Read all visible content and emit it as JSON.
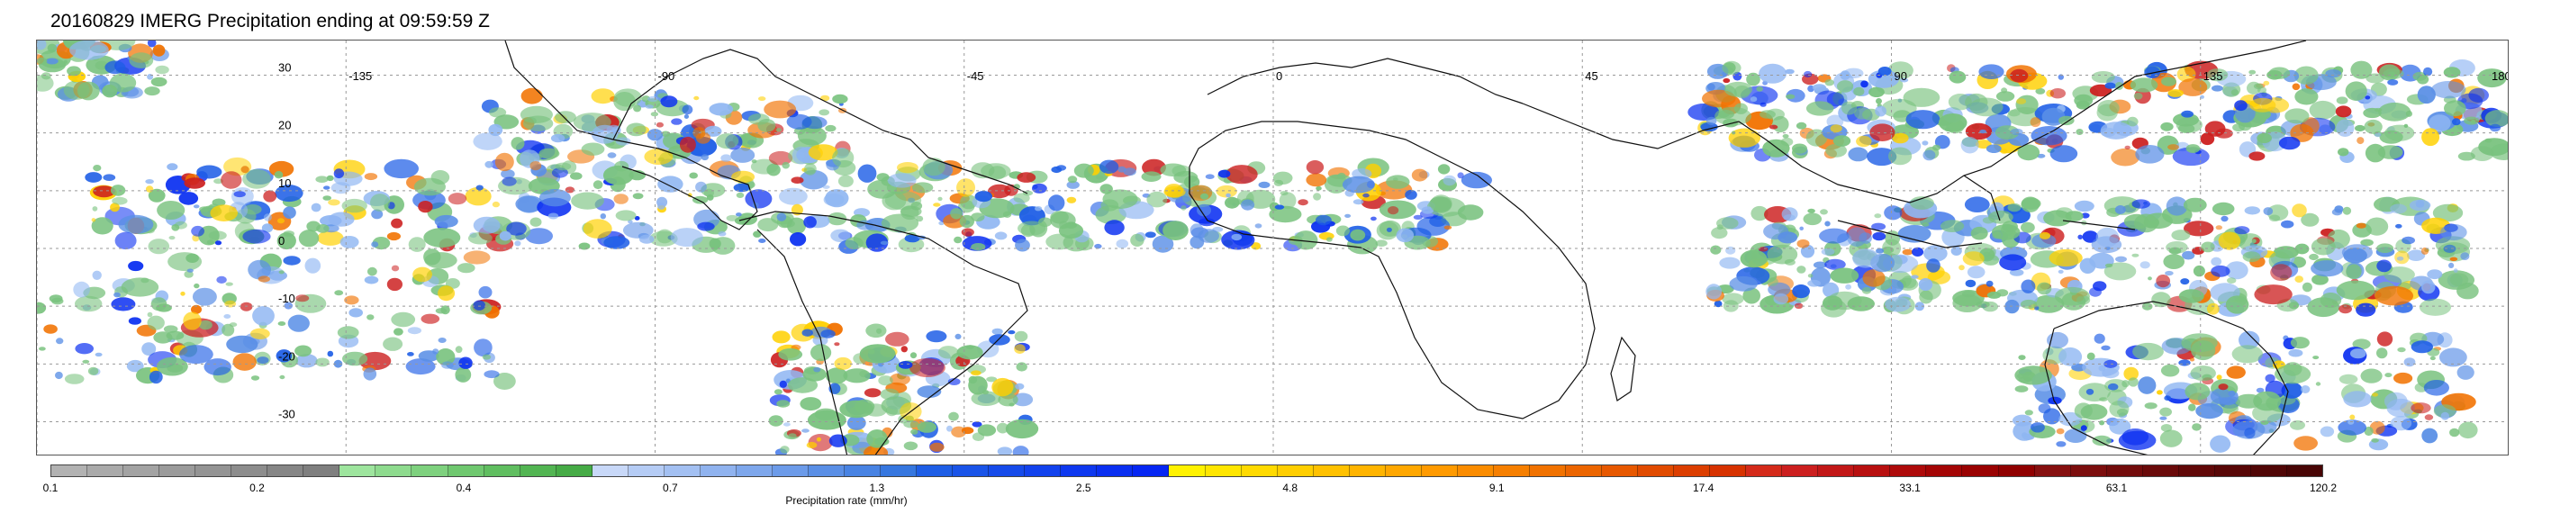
{
  "title": "20160829 IMERG Precipitation ending at 09:59:59 Z",
  "map": {
    "lon_labels": [
      "-135",
      "-90",
      "-45",
      "0",
      "45",
      "90",
      "135",
      "180"
    ],
    "lat_labels": [
      "30",
      "20",
      "10",
      "0",
      "-10",
      "-20",
      "-30"
    ],
    "gridlines": true,
    "extent": {
      "lon": [
        -180,
        180
      ],
      "lat": [
        -36,
        36
      ]
    }
  },
  "colorbar": {
    "label": "Precipitation rate (mm/hr)",
    "tick_labels": [
      "0.1",
      "0.2",
      "0.4",
      "0.7",
      "1.3",
      "2.5",
      "4.8",
      "9.1",
      "17.4",
      "33.1",
      "63.1",
      "120.2"
    ],
    "colors": [
      "#b2b2b2",
      "#aaaaaa",
      "#a3a3a3",
      "#9b9b9b",
      "#949494",
      "#8d8d8d",
      "#868686",
      "#7f7f7f",
      "#9ee59e",
      "#8edb8e",
      "#7ed17e",
      "#6fc86f",
      "#60be60",
      "#52b552",
      "#46ab46",
      "#c8d8f8",
      "#b5ccf5",
      "#a3c0f2",
      "#90b3ef",
      "#7ea7ec",
      "#6c9be9",
      "#5a8fe6",
      "#4883e3",
      "#3677df",
      "#1e5ee6",
      "#1a54e8",
      "#164bea",
      "#1242ed",
      "#0e38ef",
      "#0a2ff1",
      "#0626f3",
      "#fff200",
      "#ffe600",
      "#ffda00",
      "#ffce00",
      "#ffc100",
      "#ffb400",
      "#ffa700",
      "#ff9a00",
      "#fb8c00",
      "#f67f00",
      "#f17200",
      "#ec6500",
      "#e75800",
      "#e14b00",
      "#dc3e00",
      "#d73200",
      "#d42a1a",
      "#cc1f1f",
      "#c21717",
      "#b81010",
      "#ae0a0a",
      "#a40505",
      "#9a0202",
      "#900000",
      "#861010",
      "#7c0e0e",
      "#730c0c",
      "#6a0a0a",
      "#610808",
      "#580707",
      "#500606",
      "#480505"
    ]
  }
}
